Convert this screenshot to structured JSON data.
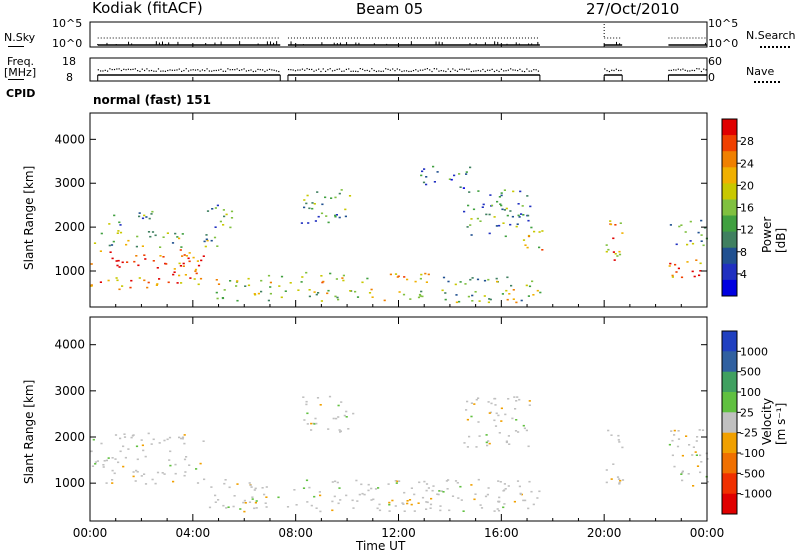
{
  "header": {
    "station": "Kodiak (fitACF)",
    "beam": "Beam 05",
    "date": "27/Oct/2010"
  },
  "status_panels": {
    "nsky_label": "N.Sky",
    "nsky_ticks": [
      "10^5",
      "10^0"
    ],
    "nsearch_label": "N.Search",
    "nsearch_ticks": [
      "10^5",
      "10^0"
    ],
    "freq_label": "Freq.",
    "freq_unit": "[MHz]",
    "freq_ticks": [
      "18",
      "8"
    ],
    "nave_label": "Nave",
    "nave_ticks": [
      "60",
      "0"
    ],
    "cpid_label": "CPID",
    "cpid_value": "normal (fast) 151"
  },
  "chart_data": [
    {
      "type": "heatmap",
      "name": "power-panel",
      "ylabel": "Slant Range [km]",
      "xlabel": "",
      "x_ticks": [
        "00:00",
        "04:00",
        "08:00",
        "12:00",
        "16:00",
        "20:00",
        "00:00"
      ],
      "xlim_hours": [
        0,
        24
      ],
      "ylim": [
        180,
        4600
      ],
      "y_ticks": [
        1000,
        2000,
        3000,
        4000
      ],
      "colorbar": {
        "label": "Power [dB]",
        "ticks": [
          "28",
          "24",
          "20",
          "16",
          "12",
          "8",
          "4"
        ],
        "colors": [
          "#e00000",
          "#f04000",
          "#f08000",
          "#f0b000",
          "#c8c800",
          "#80c040",
          "#40a040",
          "#408060",
          "#205090",
          "#2030c0",
          "#0000e0"
        ]
      },
      "scatter_regions": [
        {
          "t": [
            0.0,
            4.4
          ],
          "r": [
            1050,
            1500
          ],
          "level": 0.9
        },
        {
          "t": [
            0.0,
            3.2
          ],
          "r": [
            600,
            900
          ],
          "level": 0.7
        },
        {
          "t": [
            2.8,
            4.6
          ],
          "r": [
            700,
            1200
          ],
          "level": 0.75
        },
        {
          "t": [
            0.0,
            3.6
          ],
          "r": [
            1550,
            1950
          ],
          "level": 0.45
        },
        {
          "t": [
            0.7,
            2.4
          ],
          "r": [
            2050,
            2450
          ],
          "level": 0.35
        },
        {
          "t": [
            4.4,
            5.5
          ],
          "r": [
            1550,
            2600
          ],
          "level": 0.4
        },
        {
          "t": [
            4.8,
            7.6
          ],
          "r": [
            650,
            950
          ],
          "level": 0.55
        },
        {
          "t": [
            4.8,
            17.5
          ],
          "r": [
            300,
            600
          ],
          "level": 0.5
        },
        {
          "t": [
            7.7,
            13.5
          ],
          "r": [
            750,
            1000
          ],
          "level": 0.6
        },
        {
          "t": [
            13.5,
            17.4
          ],
          "r": [
            650,
            900
          ],
          "level": 0.5
        },
        {
          "t": [
            8.2,
            10.2
          ],
          "r": [
            2100,
            2900
          ],
          "level": 0.35
        },
        {
          "t": [
            12.8,
            14.8
          ],
          "r": [
            2900,
            3400
          ],
          "level": 0.3
        },
        {
          "t": [
            14.5,
            17.2
          ],
          "r": [
            1800,
            2900
          ],
          "level": 0.35
        },
        {
          "t": [
            16.8,
            17.6
          ],
          "r": [
            1300,
            2000
          ],
          "level": 0.6
        },
        {
          "t": [
            20.0,
            20.7
          ],
          "r": [
            950,
            2200
          ],
          "level": 0.7
        },
        {
          "t": [
            22.5,
            24.0
          ],
          "r": [
            850,
            1400
          ],
          "level": 0.85
        },
        {
          "t": [
            22.5,
            24.0
          ],
          "r": [
            1600,
            2200
          ],
          "level": 0.4
        }
      ]
    },
    {
      "type": "heatmap",
      "name": "velocity-panel",
      "ylabel": "Slant Range [km]",
      "xlabel": "Time UT",
      "x_ticks": [
        "00:00",
        "04:00",
        "08:00",
        "12:00",
        "16:00",
        "20:00",
        "00:00"
      ],
      "xlim_hours": [
        0,
        24
      ],
      "ylim": [
        180,
        4600
      ],
      "y_ticks": [
        1000,
        2000,
        3000,
        4000
      ],
      "colorbar": {
        "label": "Velocity [m s⁻¹]",
        "ticks": [
          "1000",
          "500",
          "100",
          "25",
          "-25",
          "-100",
          "-500",
          "-1000"
        ],
        "colors": [
          "#2040c0",
          "#3060a0",
          "#40a060",
          "#60c040",
          "#c0c0c0",
          "#f0a000",
          "#f07000",
          "#f03000",
          "#e00000"
        ]
      },
      "scatter_regions": [
        {
          "t": [
            0.0,
            4.4
          ],
          "r": [
            1000,
            1600
          ],
          "level": 0.5
        },
        {
          "t": [
            0.0,
            4.4
          ],
          "r": [
            1700,
            2100
          ],
          "level": 0.5
        },
        {
          "t": [
            4.6,
            17.5
          ],
          "r": [
            400,
            1100
          ],
          "level": 0.5
        },
        {
          "t": [
            10.5,
            13.8
          ],
          "r": [
            550,
            700
          ],
          "level": 0.8
        },
        {
          "t": [
            8.2,
            10.2
          ],
          "r": [
            2100,
            2900
          ],
          "level": 0.5
        },
        {
          "t": [
            14.5,
            17.2
          ],
          "r": [
            1800,
            2900
          ],
          "level": 0.5
        },
        {
          "t": [
            20.0,
            20.7
          ],
          "r": [
            950,
            2200
          ],
          "level": 0.5
        },
        {
          "t": [
            22.5,
            24.0
          ],
          "r": [
            900,
            2200
          ],
          "level": 0.5
        }
      ]
    }
  ],
  "colors": {
    "frame": "#000000",
    "background": "#ffffff"
  }
}
